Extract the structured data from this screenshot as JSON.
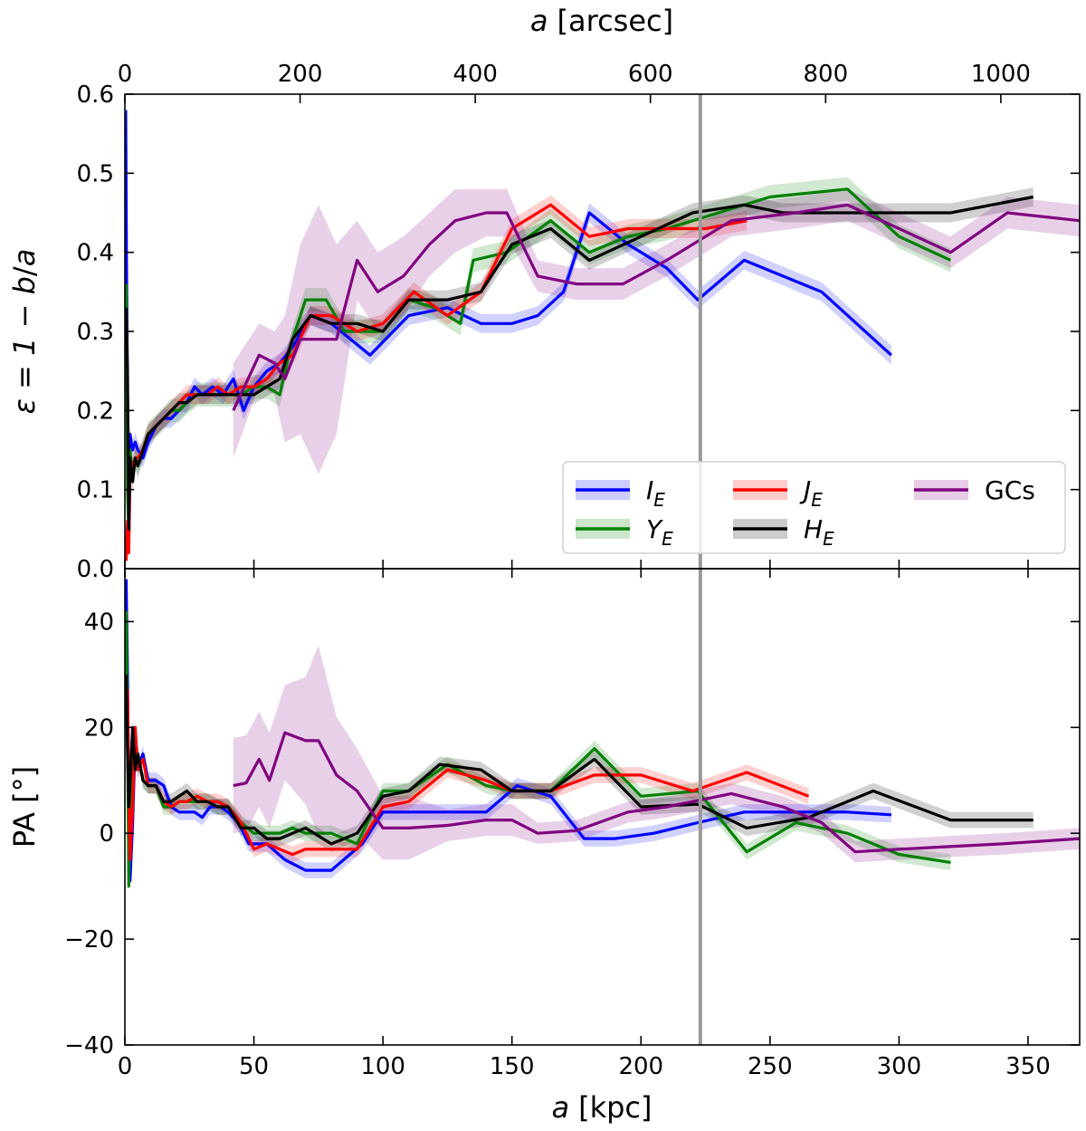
{
  "chart_data": {
    "type": "line",
    "shared_x": {
      "label_prefix": "a",
      "label_unit": "[kpc]",
      "range": [
        0,
        370
      ],
      "ticks": [
        0,
        50,
        100,
        150,
        200,
        250,
        300,
        350
      ],
      "tick_labels": [
        "0",
        "50",
        "100",
        "150",
        "200",
        "250",
        "300",
        "350"
      ]
    },
    "top_x": {
      "label_prefix": "a",
      "label_unit": "[arcsec]",
      "range": [
        0,
        1090
      ],
      "ticks": [
        0,
        200,
        400,
        600,
        800,
        1000
      ],
      "tick_labels": [
        "0",
        "200",
        "400",
        "600",
        "800",
        "1000"
      ]
    },
    "reference_line": {
      "x": 223,
      "color": "#999999"
    },
    "panels": [
      {
        "id": "ellipticity",
        "ylabel": "ε = 1 − b/a",
        "ylabel_parts": [
          "ε = 1 − ",
          "b",
          "/",
          "a"
        ],
        "ylim": [
          0.0,
          0.6
        ],
        "yticks": [
          0.0,
          0.1,
          0.2,
          0.3,
          0.4,
          0.5,
          0.6
        ],
        "ytick_labels": [
          "0.0",
          "0.1",
          "0.2",
          "0.3",
          "0.4",
          "0.5",
          "0.6"
        ]
      },
      {
        "id": "position_angle",
        "ylabel": "PA [°]",
        "ylim": [
          -40,
          50
        ],
        "yticks": [
          -40,
          -20,
          0,
          20,
          40
        ],
        "ytick_labels": [
          "−40",
          "−20",
          "0",
          "20",
          "40"
        ]
      }
    ],
    "series": [
      {
        "name": "I_E",
        "label_main": "I",
        "label_sub": "E",
        "color": "#0000ff",
        "ellipticity": {
          "x": [
            0.3,
            0.6,
            1,
            1.4,
            2,
            3,
            4,
            5,
            7,
            9,
            12,
            15,
            18,
            21,
            24,
            27,
            30,
            34,
            38,
            42,
            46,
            50,
            55,
            60,
            65,
            72,
            80,
            95,
            110,
            125,
            138,
            150,
            160,
            170,
            180,
            195,
            210,
            222,
            240,
            255,
            270,
            297
          ],
          "y": [
            0.58,
            0.4,
            0.22,
            0.12,
            0.17,
            0.15,
            0.16,
            0.15,
            0.14,
            0.16,
            0.18,
            0.19,
            0.19,
            0.2,
            0.21,
            0.23,
            0.22,
            0.23,
            0.22,
            0.24,
            0.2,
            0.23,
            0.25,
            0.26,
            0.28,
            0.32,
            0.31,
            0.27,
            0.32,
            0.33,
            0.31,
            0.31,
            0.32,
            0.35,
            0.45,
            0.41,
            0.38,
            0.34,
            0.39,
            0.37,
            0.35,
            0.27
          ],
          "err": 0.012
        },
        "pa": {
          "x": [
            0.5,
            1,
            1.5,
            2,
            3,
            4,
            5,
            7,
            9,
            12,
            15,
            18,
            21,
            24,
            27,
            30,
            33,
            37,
            40,
            44,
            48,
            55,
            62,
            70,
            80,
            92,
            100,
            125,
            140,
            152,
            165,
            178,
            190,
            205,
            222,
            240,
            260,
            280,
            297
          ],
          "y": [
            48,
            30,
            8,
            -9,
            2,
            18,
            12,
            15,
            10,
            10,
            9,
            5,
            4,
            4,
            4,
            3,
            5,
            5,
            4,
            2,
            -2,
            -2,
            -5,
            -7,
            -7,
            -2,
            4,
            4,
            4,
            9,
            7,
            -1,
            -1,
            0,
            2,
            4,
            4,
            4,
            3.5
          ],
          "err": 1.5
        }
      },
      {
        "name": "Y_E",
        "label_main": "Y",
        "label_sub": "E",
        "color": "#008000",
        "ellipticity": {
          "x": [
            0.5,
            1,
            1.5,
            2,
            3,
            4,
            5,
            7,
            9,
            12,
            15,
            18,
            21,
            24,
            28,
            32,
            36,
            40,
            45,
            50,
            55,
            60,
            65,
            70,
            78,
            85,
            92,
            100,
            110,
            120,
            130,
            135,
            148,
            165,
            180,
            195,
            210,
            230,
            250,
            280,
            300,
            320
          ],
          "y": [
            0.36,
            0.1,
            0.04,
            0.15,
            0.12,
            0.14,
            0.13,
            0.15,
            0.17,
            0.18,
            0.19,
            0.2,
            0.2,
            0.21,
            0.22,
            0.22,
            0.22,
            0.22,
            0.22,
            0.23,
            0.23,
            0.22,
            0.29,
            0.34,
            0.34,
            0.3,
            0.3,
            0.3,
            0.34,
            0.33,
            0.31,
            0.39,
            0.4,
            0.44,
            0.4,
            0.42,
            0.43,
            0.45,
            0.47,
            0.48,
            0.42,
            0.39
          ],
          "err": 0.015
        },
        "pa": {
          "x": [
            0.5,
            1,
            1.5,
            2,
            3,
            4,
            5,
            7,
            9,
            12,
            15,
            18,
            21,
            24,
            28,
            32,
            36,
            40,
            45,
            50,
            55,
            60,
            65,
            70,
            80,
            90,
            100,
            110,
            125,
            140,
            150,
            165,
            182,
            200,
            222,
            241,
            260,
            280,
            300,
            320
          ],
          "y": [
            42,
            20,
            -10,
            5,
            15,
            12,
            15,
            10,
            9,
            9,
            5,
            5,
            6,
            6,
            6,
            6,
            5,
            5,
            2,
            0,
            0,
            0,
            1,
            0,
            0,
            -2,
            8,
            8,
            13,
            9,
            8,
            8,
            16,
            7,
            8,
            -3.5,
            2,
            0,
            -4,
            -5.5
          ],
          "err": 1.5
        }
      },
      {
        "name": "J_E",
        "label_main": "J",
        "label_sub": "E",
        "color": "#ff0000",
        "ellipticity": {
          "x": [
            0.5,
            1,
            1.5,
            2,
            3,
            4,
            5,
            7,
            9,
            12,
            15,
            18,
            21,
            24,
            28,
            32,
            36,
            40,
            45,
            50,
            55,
            60,
            65,
            72,
            80,
            90,
            100,
            112,
            125,
            138,
            150,
            165,
            180,
            195,
            210,
            225,
            241
          ],
          "y": [
            0.01,
            0.06,
            0.02,
            0.12,
            0.13,
            0.14,
            0.14,
            0.15,
            0.17,
            0.18,
            0.19,
            0.2,
            0.21,
            0.22,
            0.22,
            0.22,
            0.23,
            0.22,
            0.23,
            0.23,
            0.24,
            0.26,
            0.27,
            0.32,
            0.32,
            0.3,
            0.31,
            0.35,
            0.32,
            0.35,
            0.43,
            0.46,
            0.42,
            0.43,
            0.43,
            0.43,
            0.44
          ],
          "err": 0.012
        },
        "pa": {
          "x": [
            0.5,
            1,
            1.5,
            2,
            3,
            4,
            5,
            7,
            9,
            12,
            15,
            18,
            21,
            24,
            28,
            32,
            36,
            40,
            45,
            50,
            55,
            60,
            65,
            70,
            80,
            90,
            100,
            110,
            125,
            140,
            150,
            165,
            182,
            200,
            220,
            241,
            265
          ],
          "y": [
            25,
            27,
            10,
            -5,
            5,
            20,
            12,
            14,
            9,
            9,
            6,
            5,
            6,
            6,
            7,
            6,
            6,
            5,
            2,
            -3,
            -2,
            -3,
            -4,
            -3,
            -3,
            -3,
            5,
            6,
            12,
            10,
            8,
            8,
            11,
            11,
            8,
            11.5,
            7
          ],
          "err": 1.5
        }
      },
      {
        "name": "H_E",
        "label_main": "H",
        "label_sub": "E",
        "color": "#000000",
        "ellipticity": {
          "x": [
            0.5,
            1,
            1.5,
            2,
            3,
            4,
            5,
            7,
            9,
            12,
            15,
            18,
            21,
            24,
            28,
            32,
            36,
            40,
            45,
            50,
            55,
            60,
            65,
            72,
            80,
            90,
            100,
            110,
            125,
            138,
            150,
            165,
            180,
            200,
            220,
            240,
            255,
            280,
            300,
            320,
            352
          ],
          "y": [
            0.33,
            0.25,
            0.05,
            0.14,
            0.11,
            0.14,
            0.13,
            0.15,
            0.17,
            0.18,
            0.19,
            0.2,
            0.21,
            0.21,
            0.22,
            0.22,
            0.22,
            0.22,
            0.22,
            0.22,
            0.23,
            0.24,
            0.29,
            0.32,
            0.31,
            0.31,
            0.3,
            0.34,
            0.34,
            0.35,
            0.41,
            0.43,
            0.39,
            0.42,
            0.45,
            0.46,
            0.45,
            0.45,
            0.45,
            0.45,
            0.47
          ],
          "err": 0.012
        },
        "pa": {
          "x": [
            0.5,
            1,
            1.5,
            2,
            3,
            4,
            5,
            7,
            9,
            12,
            15,
            18,
            21,
            24,
            28,
            32,
            36,
            40,
            45,
            50,
            55,
            60,
            65,
            70,
            80,
            90,
            100,
            110,
            122,
            138,
            150,
            165,
            182,
            200,
            222,
            241,
            265,
            290,
            320,
            352
          ],
          "y": [
            30,
            15,
            5,
            10,
            20,
            12,
            15,
            10,
            9,
            9,
            6,
            6,
            7,
            8,
            6,
            6,
            5,
            5,
            1,
            1,
            -1,
            -1,
            0,
            1,
            -2,
            0,
            7,
            8,
            13,
            12,
            8,
            8,
            14,
            5,
            5.5,
            1,
            3,
            8,
            2.5,
            2.5
          ],
          "err": 1.5
        }
      },
      {
        "name": "GCs",
        "label_main": "GCs",
        "label_sub": "",
        "color": "#800080",
        "ellipticity": {
          "x": [
            42,
            52,
            58,
            62,
            68,
            75,
            82,
            90,
            98,
            108,
            118,
            128,
            140,
            148,
            160,
            175,
            193,
            210,
            235,
            260,
            280,
            300,
            320,
            342,
            370
          ],
          "y": [
            0.2,
            0.27,
            0.26,
            0.24,
            0.29,
            0.29,
            0.29,
            0.39,
            0.35,
            0.37,
            0.41,
            0.44,
            0.45,
            0.45,
            0.37,
            0.36,
            0.36,
            0.39,
            0.44,
            0.45,
            0.46,
            0.43,
            0.4,
            0.45,
            0.44
          ],
          "err": [
            0.06,
            0.04,
            0.04,
            0.08,
            0.12,
            0.17,
            0.12,
            0.05,
            0.05,
            0.05,
            0.04,
            0.04,
            0.03,
            0.03,
            0.02,
            0.02,
            0.02,
            0.02,
            0.02,
            0.02,
            0.02,
            0.02,
            0.02,
            0.02,
            0.02
          ]
        },
        "pa": {
          "x": [
            42,
            47,
            52,
            56,
            62,
            70,
            75,
            82,
            90,
            100,
            110,
            125,
            140,
            150,
            160,
            175,
            195,
            210,
            235,
            255,
            270,
            283,
            300,
            340,
            370
          ],
          "y": [
            9,
            9.5,
            14,
            10,
            19,
            17.5,
            17.5,
            11,
            8,
            1,
            1,
            1.5,
            2.5,
            2.5,
            0,
            0.5,
            4,
            5,
            7.5,
            5,
            2,
            -3.5,
            -3,
            -2,
            -1
          ],
          "err": [
            9,
            9,
            9,
            9,
            9,
            12,
            18,
            11,
            8,
            6,
            6,
            3,
            3,
            3,
            2,
            2,
            2,
            2,
            2,
            2,
            2,
            2,
            2,
            2,
            2
          ]
        }
      }
    ],
    "legend": {
      "placement": "lower-right of top panel",
      "columns": 3
    }
  }
}
